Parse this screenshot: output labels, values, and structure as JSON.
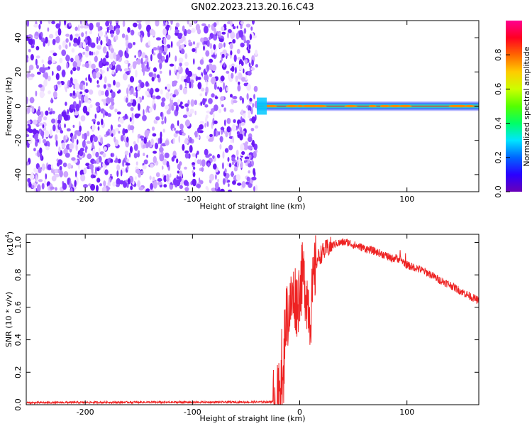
{
  "title": "GN02.2023.213.20.16.C43",
  "colors": {
    "background": "#ffffff",
    "snr_line": "#ee2222",
    "noise_tones": [
      "#f3e6ff",
      "#e4ccff",
      "#cfa8ff",
      "#b784ff",
      "#9a5cff",
      "#7f33ff",
      "#6a18f5"
    ],
    "colormap": [
      "#6a00b8",
      "#2a00ff",
      "#0066ff",
      "#00e5ff",
      "#00ff66",
      "#55ff00",
      "#ccff00",
      "#ffcc00",
      "#ff6600",
      "#ff0022",
      "#ff0090"
    ]
  },
  "chart_data": [
    {
      "type": "heatmap",
      "title": "GN02.2023.213.20.16.C43",
      "xlabel": "Height of straight line (km)",
      "ylabel": "Frequency (Hz)",
      "xlim": [
        -255,
        167
      ],
      "ylim": [
        -50,
        50
      ],
      "x_ticks": [
        -200,
        -100,
        0,
        100
      ],
      "x_tick_labels": [
        "-200",
        "-100",
        "0",
        "100"
      ],
      "y_ticks": [
        -40,
        -20,
        0,
        20,
        40
      ],
      "y_tick_labels": [
        "-40",
        "-20",
        "0",
        "20",
        "40"
      ],
      "noise_region": {
        "x_start": -255,
        "x_end": -40
      },
      "signal_band": {
        "x_start": -40,
        "x_end": 167,
        "center_freq_hz": 0
      },
      "colorbar": {
        "label": "Normalized spectral amplitude",
        "range": [
          0,
          1
        ],
        "ticks": [
          0.0,
          0.2,
          0.4,
          0.6,
          0.8
        ],
        "tick_labels": [
          "0.0",
          "0.2",
          "0.4",
          "0.6",
          "0.8"
        ]
      }
    },
    {
      "type": "line",
      "xlabel": "Height of straight line (km)",
      "ylabel": "SNR (10 * v/v)",
      "y_scale_label": "(x10",
      "y_scale_exponent": "4",
      "y_scale_close": ")",
      "xlim": [
        -255,
        167
      ],
      "ylim": [
        0,
        1.05
      ],
      "x_ticks": [
        -200,
        -100,
        0,
        100
      ],
      "x_tick_labels": [
        "-200",
        "-100",
        "0",
        "100"
      ],
      "y_ticks": [
        0.0,
        0.2,
        0.4,
        0.6,
        0.8,
        1.0
      ],
      "y_tick_labels": [
        "0.0",
        "0.2",
        "0.4",
        "0.6",
        "0.8",
        "1.0"
      ],
      "series": [
        {
          "x": [
            -255,
            -230,
            -200,
            -150,
            -100,
            -60,
            -30,
            -22,
            -20,
            -18,
            -17,
            -16,
            -15,
            -14,
            -12,
            -10,
            -8,
            -5,
            -2,
            0,
            3,
            6,
            10,
            15,
            20,
            25,
            30,
            35,
            40,
            45,
            50,
            60,
            70,
            80,
            85,
            90,
            95,
            100,
            110,
            120,
            130,
            140,
            150,
            160,
            167
          ],
          "y": [
            0.012,
            0.013,
            0.014,
            0.015,
            0.015,
            0.016,
            0.017,
            0.02,
            0.04,
            0.12,
            0.3,
            0.05,
            0.15,
            0.48,
            0.55,
            0.58,
            0.62,
            0.68,
            0.62,
            0.72,
            0.8,
            0.7,
            0.55,
            0.88,
            0.93,
            0.96,
            0.98,
            0.995,
            1.0,
            1.0,
            0.985,
            0.965,
            0.945,
            0.92,
            0.9,
            0.905,
            0.89,
            0.86,
            0.84,
            0.81,
            0.77,
            0.74,
            0.7,
            0.665,
            0.64
          ]
        }
      ]
    }
  ]
}
